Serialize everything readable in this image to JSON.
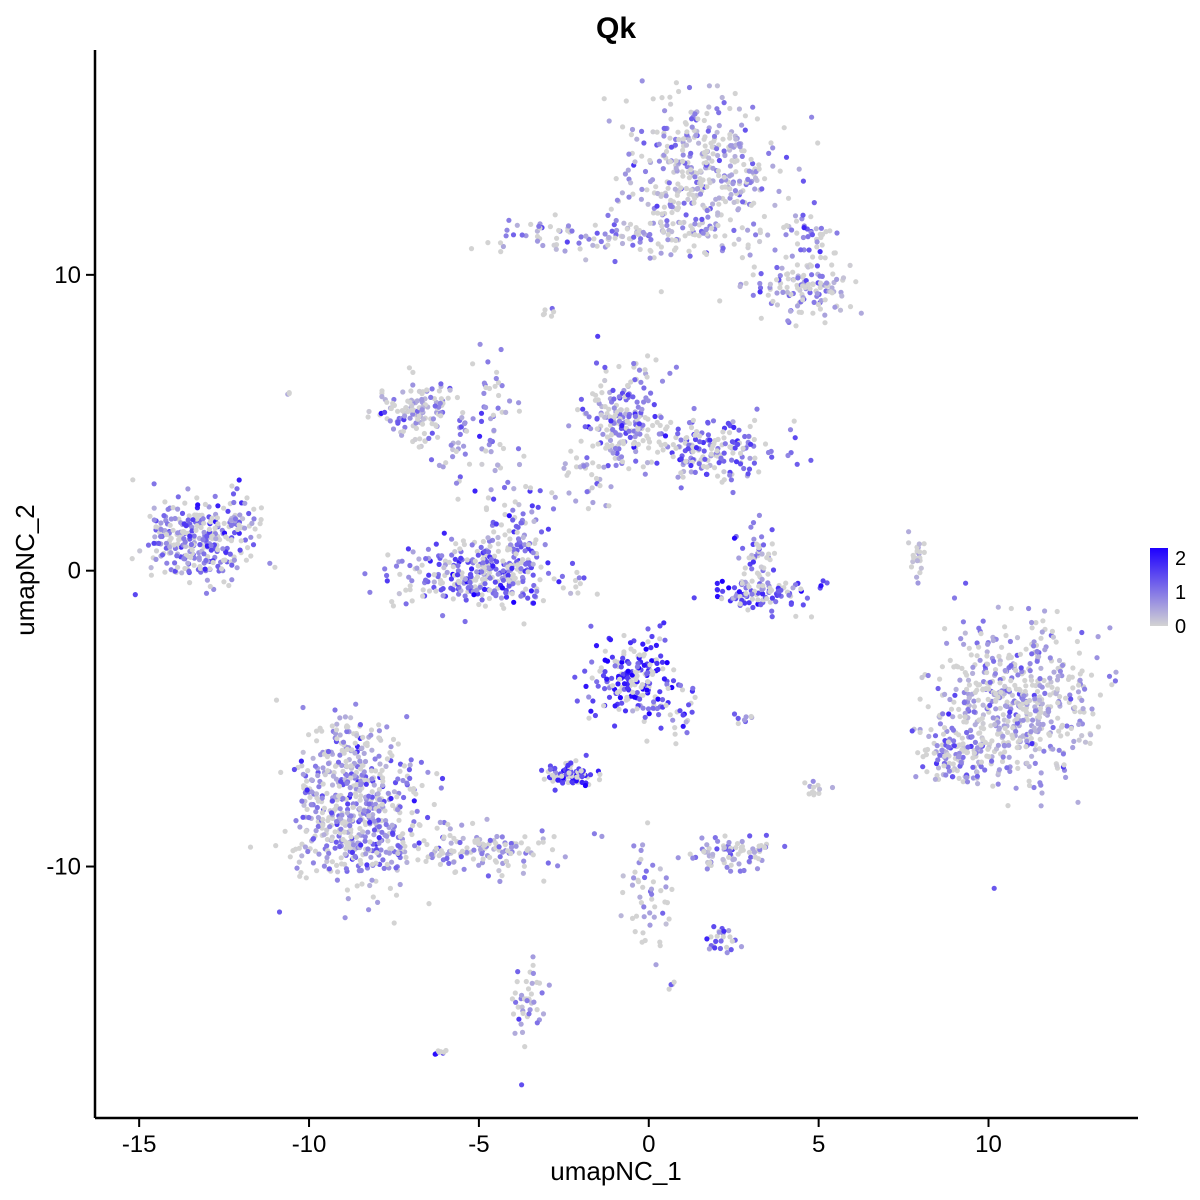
{
  "chart_data": {
    "type": "scatter",
    "title": "Qk",
    "xlabel": "umapNC_1",
    "ylabel": "umapNC_2",
    "xlim": [
      -16.3,
      14.4
    ],
    "ylim": [
      -18.5,
      17.6
    ],
    "xticks": [
      -15,
      -10,
      -5,
      0,
      5,
      10
    ],
    "xtick_labels": [
      "-15",
      "-10",
      "-5",
      "0",
      "5",
      "10"
    ],
    "yticks": [
      -10,
      0,
      10
    ],
    "ytick_labels": [
      "-10",
      "0",
      "10"
    ],
    "grid": false,
    "legend": {
      "placement": "right",
      "type": "color-gradient",
      "labels": [
        "2",
        "1",
        "0"
      ],
      "values": [
        2,
        1,
        0
      ],
      "range": [
        0,
        2.3
      ],
      "low_color": "#d3d3d3",
      "high_color": "#1e00ff"
    },
    "point_color_low": "#d3d3d3",
    "point_color_high": "#1e00ff",
    "clusters": [
      {
        "cx": 1.5,
        "cy": 13.5,
        "sx": 1.1,
        "sy": 1.2,
        "n": 380,
        "expr": 0.6
      },
      {
        "cx": -1.5,
        "cy": 11.3,
        "sx": 1.5,
        "sy": 0.35,
        "n": 90,
        "expr": 0.8
      },
      {
        "cx": 1.2,
        "cy": 11.5,
        "sx": 1.2,
        "sy": 0.45,
        "n": 60,
        "expr": 0.4
      },
      {
        "cx": 4.6,
        "cy": 9.5,
        "sx": 0.8,
        "sy": 0.5,
        "n": 130,
        "expr": 0.7
      },
      {
        "cx": 4.8,
        "cy": 11.4,
        "sx": 0.5,
        "sy": 0.4,
        "n": 40,
        "expr": 0.8
      },
      {
        "cx": -6.8,
        "cy": 5.5,
        "sx": 0.6,
        "sy": 0.5,
        "n": 120,
        "expr": 0.6
      },
      {
        "cx": -5.3,
        "cy": 4.3,
        "sx": 0.9,
        "sy": 0.6,
        "n": 60,
        "expr": 0.6
      },
      {
        "cx": -4.6,
        "cy": 6.3,
        "sx": 0.3,
        "sy": 0.8,
        "n": 25,
        "expr": 0.8
      },
      {
        "cx": -0.7,
        "cy": 5.1,
        "sx": 0.6,
        "sy": 0.9,
        "n": 190,
        "expr": 0.9
      },
      {
        "cx": 1.8,
        "cy": 4.1,
        "sx": 1.0,
        "sy": 0.55,
        "n": 190,
        "expr": 1.1
      },
      {
        "cx": -1.8,
        "cy": 3.4,
        "sx": 0.5,
        "sy": 0.8,
        "n": 40,
        "expr": 0.5
      },
      {
        "cx": -5.0,
        "cy": -0.1,
        "sx": 1.2,
        "sy": 0.55,
        "n": 330,
        "expr": 1.2
      },
      {
        "cx": -4.0,
        "cy": 1.5,
        "sx": 0.5,
        "sy": 0.8,
        "n": 70,
        "expr": 1.0
      },
      {
        "cx": -13.3,
        "cy": 1.0,
        "sx": 0.8,
        "sy": 0.65,
        "n": 300,
        "expr": 1.0
      },
      {
        "cx": -12.1,
        "cy": 1.8,
        "sx": 0.4,
        "sy": 0.6,
        "n": 35,
        "expr": 0.9
      },
      {
        "cx": 3.3,
        "cy": -0.8,
        "sx": 0.7,
        "sy": 0.3,
        "n": 110,
        "expr": 1.3
      },
      {
        "cx": 3.2,
        "cy": 0.5,
        "sx": 0.3,
        "sy": 0.5,
        "n": 45,
        "expr": 1.1
      },
      {
        "cx": 7.9,
        "cy": 0.4,
        "sx": 0.12,
        "sy": 0.4,
        "n": 25,
        "expr": 0.1
      },
      {
        "cx": 10.8,
        "cy": -4.5,
        "sx": 1.1,
        "sy": 1.3,
        "n": 560,
        "expr": 0.6
      },
      {
        "cx": 9.0,
        "cy": -6.2,
        "sx": 0.6,
        "sy": 0.5,
        "n": 110,
        "expr": 0.9
      },
      {
        "cx": -0.5,
        "cy": -3.6,
        "sx": 0.6,
        "sy": 0.7,
        "n": 200,
        "expr": 1.6
      },
      {
        "cx": 0.8,
        "cy": -4.9,
        "sx": 0.4,
        "sy": 0.5,
        "n": 30,
        "expr": 1.3
      },
      {
        "cx": -2.4,
        "cy": -6.9,
        "sx": 0.4,
        "sy": 0.2,
        "n": 90,
        "expr": 1.8
      },
      {
        "cx": -8.6,
        "cy": -8.2,
        "sx": 1.0,
        "sy": 1.2,
        "n": 540,
        "expr": 0.8
      },
      {
        "cx": -5.0,
        "cy": -9.5,
        "sx": 1.3,
        "sy": 0.4,
        "n": 140,
        "expr": 0.7
      },
      {
        "cx": -8.8,
        "cy": -6.0,
        "sx": 0.5,
        "sy": 0.6,
        "n": 80,
        "expr": 0.6
      },
      {
        "cx": 2.4,
        "cy": -9.5,
        "sx": 0.6,
        "sy": 0.3,
        "n": 80,
        "expr": 0.7
      },
      {
        "cx": 0.0,
        "cy": -11.0,
        "sx": 0.3,
        "sy": 1.0,
        "n": 50,
        "expr": 0.7
      },
      {
        "cx": 2.2,
        "cy": -12.5,
        "sx": 0.3,
        "sy": 0.25,
        "n": 25,
        "expr": 1.0
      },
      {
        "cx": -3.6,
        "cy": -14.5,
        "sx": 0.25,
        "sy": 0.6,
        "n": 45,
        "expr": 0.7
      },
      {
        "cx": -6.1,
        "cy": -16.3,
        "sx": 0.08,
        "sy": 0.05,
        "n": 8,
        "expr": 2.3
      },
      {
        "cx": 5.0,
        "cy": -7.3,
        "sx": 0.2,
        "sy": 0.2,
        "n": 12,
        "expr": 0.4
      },
      {
        "cx": 2.8,
        "cy": -5.0,
        "sx": 0.15,
        "sy": 0.1,
        "n": 8,
        "expr": 1.2
      },
      {
        "cx": -2.9,
        "cy": 8.7,
        "sx": 0.1,
        "sy": 0.12,
        "n": 6,
        "expr": 0.9
      },
      {
        "cx": -10.6,
        "cy": 6.0,
        "sx": 0.08,
        "sy": 0.08,
        "n": 3,
        "expr": 0.9
      },
      {
        "cx": 0.6,
        "cy": -14.1,
        "sx": 0.1,
        "sy": 0.1,
        "n": 4,
        "expr": 0.8
      }
    ]
  }
}
